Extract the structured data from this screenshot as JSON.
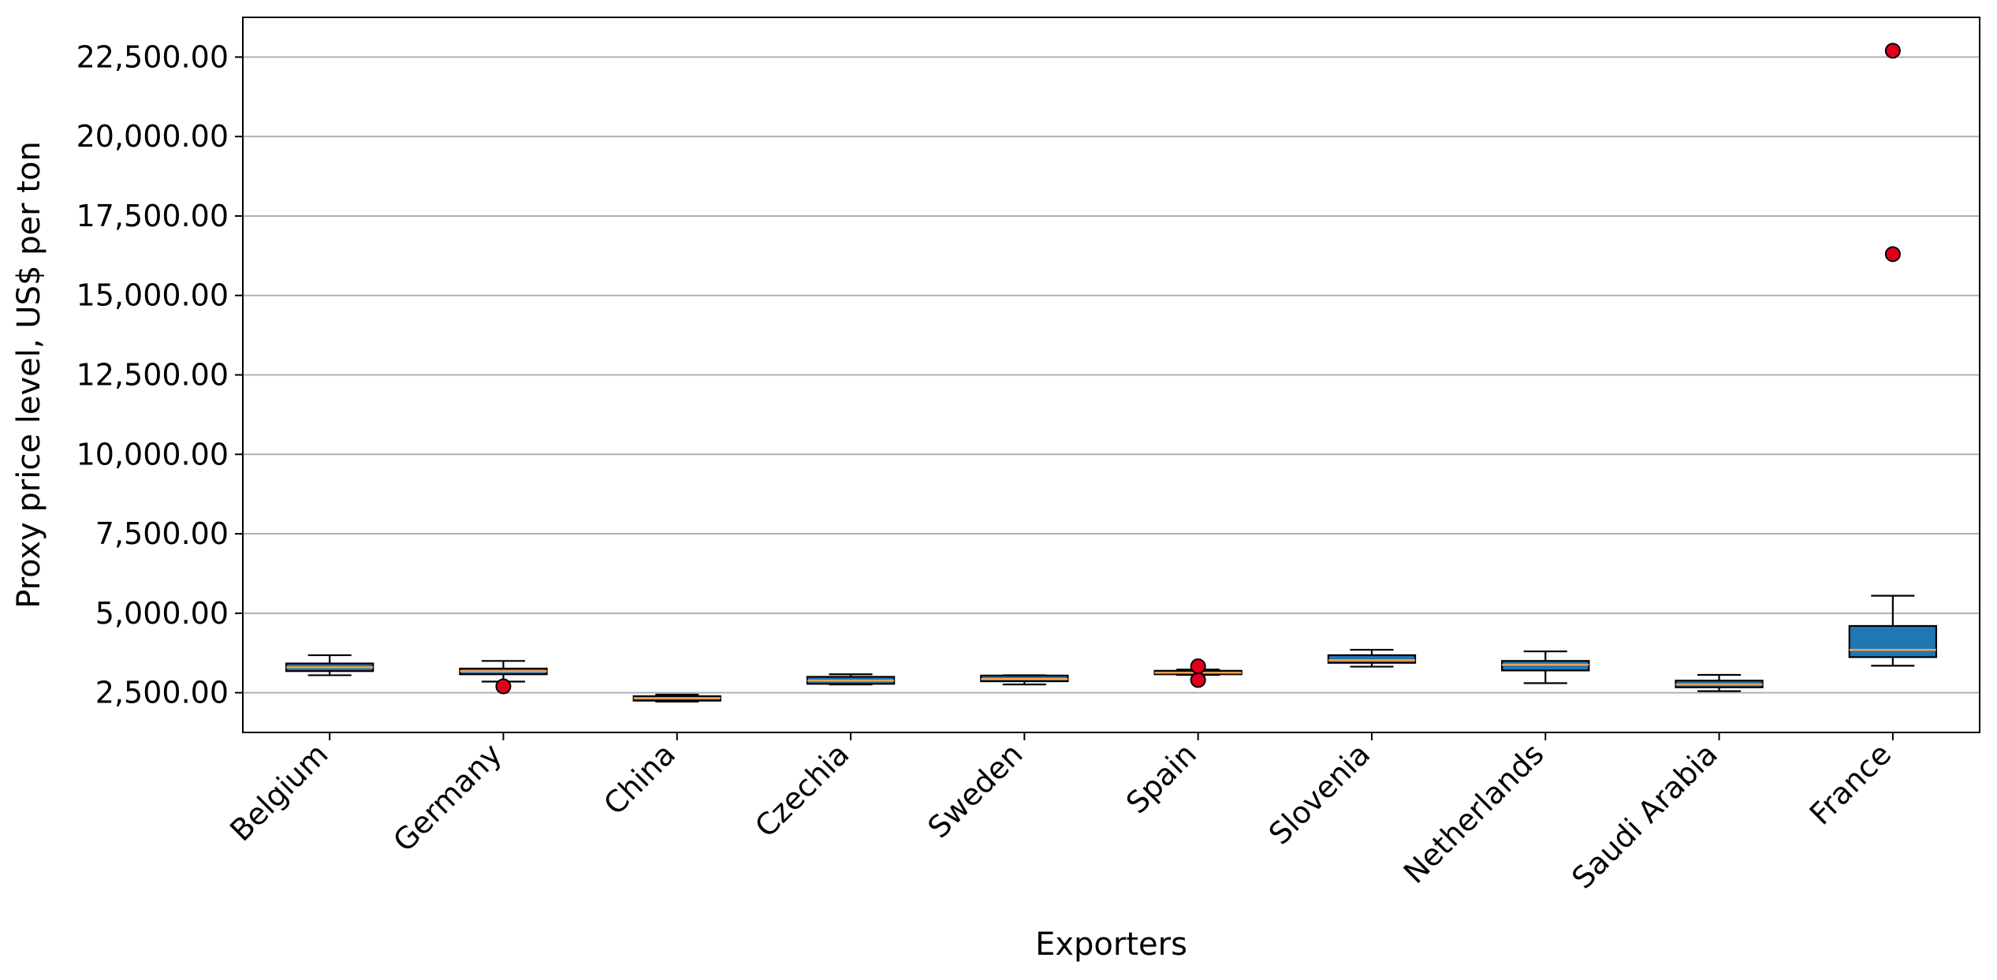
{
  "chart_data": {
    "type": "boxplot",
    "title": "",
    "xlabel": "Exporters",
    "ylabel": "Proxy price level, US$ per ton",
    "ylim": [
      1250,
      23750
    ],
    "yticks": [
      2500,
      5000,
      7500,
      10000,
      12500,
      15000,
      17500,
      20000,
      22500
    ],
    "ytick_labels": [
      "2,500.00",
      "5,000.00",
      "7,500.00",
      "10,000.00",
      "12,500.00",
      "15,000.00",
      "17,500.00",
      "20,000.00",
      "22,500.00"
    ],
    "grid": "y",
    "box_color": "#1f77b4",
    "median_color": "#ff9f4a",
    "outlier_color": "#e0001b",
    "categories": [
      "Belgium",
      "Germany",
      "China",
      "Czechia",
      "Sweden",
      "Spain",
      "Slovenia",
      "Netherlands",
      "Saudi Arabia",
      "France"
    ],
    "boxes": [
      {
        "category": "Belgium",
        "whisker_low": 3050,
        "q1": 3180,
        "median": 3300,
        "q3": 3420,
        "whisker_high": 3680,
        "outliers": []
      },
      {
        "category": "Germany",
        "whisker_low": 2850,
        "q1": 3080,
        "median": 3180,
        "q3": 3260,
        "whisker_high": 3500,
        "outliers": [
          2700
        ]
      },
      {
        "category": "China",
        "whisker_low": 2220,
        "q1": 2250,
        "median": 2330,
        "q3": 2390,
        "whisker_high": 2440,
        "outliers": []
      },
      {
        "category": "Czechia",
        "whisker_low": 2760,
        "q1": 2780,
        "median": 2880,
        "q3": 3000,
        "whisker_high": 3080,
        "outliers": []
      },
      {
        "category": "Sweden",
        "whisker_low": 2760,
        "q1": 2860,
        "median": 2930,
        "q3": 3040,
        "whisker_high": 3050,
        "outliers": []
      },
      {
        "category": "Spain",
        "whisker_low": 3060,
        "q1": 3080,
        "median": 3130,
        "q3": 3190,
        "whisker_high": 3230,
        "outliers": [
          2900,
          3330
        ]
      },
      {
        "category": "Slovenia",
        "whisker_low": 3320,
        "q1": 3440,
        "median": 3520,
        "q3": 3680,
        "whisker_high": 3850,
        "outliers": []
      },
      {
        "category": "Netherlands",
        "whisker_low": 2800,
        "q1": 3200,
        "median": 3380,
        "q3": 3500,
        "whisker_high": 3800,
        "outliers": []
      },
      {
        "category": "Saudi Arabia",
        "whisker_low": 2550,
        "q1": 2670,
        "median": 2760,
        "q3": 2880,
        "whisker_high": 3060,
        "outliers": []
      },
      {
        "category": "France",
        "whisker_low": 3350,
        "q1": 3620,
        "median": 3850,
        "q3": 4600,
        "whisker_high": 5550,
        "outliers": [
          16300,
          22700
        ]
      }
    ]
  }
}
